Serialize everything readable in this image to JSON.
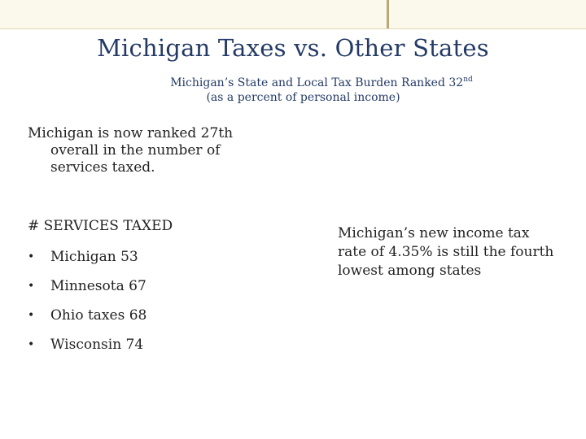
{
  "slide": {
    "title": "Michigan Taxes vs. Other States",
    "subtitle": {
      "line1_text": "Michigan’s State and Local Tax Burden Ranked 32",
      "line1_sup": "nd",
      "line2": "(as a percent of personal income)"
    },
    "intro": {
      "line1": "Michigan is now ranked 27th",
      "line2": "overall in the number of",
      "line3": "services taxed."
    },
    "services": {
      "heading": "# SERVICES TAXED",
      "bullet_glyph": "•",
      "items": [
        {
          "label": "Michigan 53"
        },
        {
          "label": "Minnesota 67"
        },
        {
          "label": "Ohio taxes 68"
        },
        {
          "label": "Wisconsin 74"
        }
      ]
    },
    "note": {
      "line1": "Michigan’s new income tax",
      "line2": "rate of 4.35% is still the fourth",
      "line3": "lowest among states"
    }
  },
  "colors": {
    "title": "#243a66",
    "body_text": "#222222",
    "top_band": "#fbf8ec",
    "divider": "#b9a978"
  }
}
